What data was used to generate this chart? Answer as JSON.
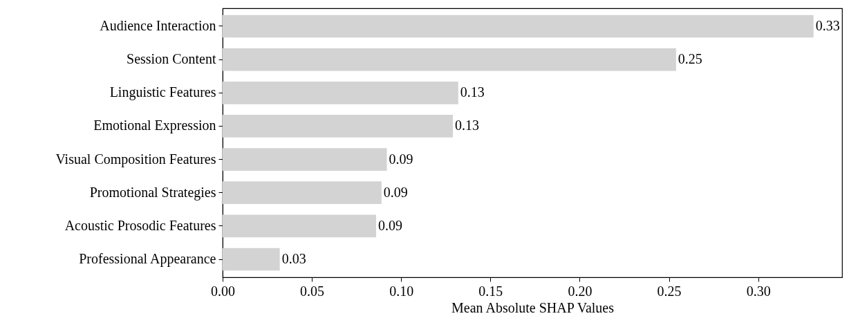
{
  "chart_data": {
    "type": "bar",
    "orientation": "horizontal",
    "xlabel": "Mean Absolute SHAP Values",
    "categories": [
      "Audience Interaction",
      "Session Content",
      "Linguistic Features",
      "Emotional Expression",
      "Visual Composition Features",
      "Promotional Strategies",
      "Acoustic Prosodic Features",
      "Professional Appearance"
    ],
    "values": [
      0.331,
      0.254,
      0.132,
      0.129,
      0.092,
      0.089,
      0.086,
      0.032
    ],
    "value_labels": [
      "0.33",
      "0.25",
      "0.13",
      "0.13",
      "0.09",
      "0.09",
      "0.09",
      "0.03"
    ],
    "color": "#d3d3d3",
    "xlim": [
      0,
      0.347
    ],
    "xticks": [
      {
        "value": 0,
        "label": "0.00"
      },
      0.05,
      {
        "value": 0.1,
        "label": "0.10"
      },
      0.15,
      {
        "value": 0.2,
        "label": "0.20"
      },
      0.25,
      {
        "value": 0.3,
        "label": "0.30"
      }
    ],
    "grid": false
  }
}
